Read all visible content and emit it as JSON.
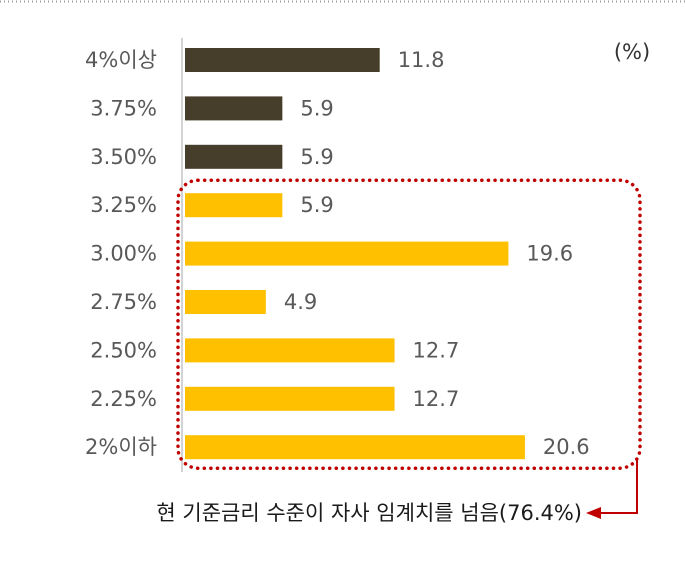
{
  "chart_data": {
    "type": "bar",
    "horizontal": true,
    "categories": [
      "4%이상",
      "3.75%",
      "3.50%",
      "3.25%",
      "3.00%",
      "2.75%",
      "2.50%",
      "2.25%",
      "2%이하"
    ],
    "values": [
      11.8,
      5.9,
      5.9,
      5.9,
      19.6,
      4.9,
      12.7,
      12.7,
      20.6
    ],
    "unit": "(%)",
    "xlim": [
      0,
      28
    ],
    "grid": false,
    "bar_colors": [
      "#463d2a",
      "#463d2a",
      "#463d2a",
      "#ffc000",
      "#ffc000",
      "#ffc000",
      "#ffc000",
      "#ffc000",
      "#ffc000"
    ]
  },
  "annotation": {
    "text": "현 기준금리 수준이 자사 임계치를 넘음(76.4%)",
    "highlight_index_range": [
      3,
      8
    ],
    "color": "#c00000"
  }
}
